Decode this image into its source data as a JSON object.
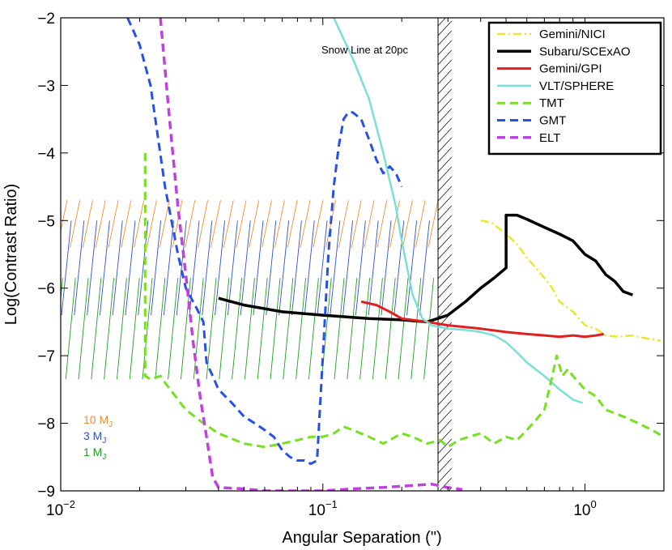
{
  "chart_data": {
    "type": "line",
    "xscale": "log",
    "xlabel": "Angular Separation (\")",
    "ylabel": "Log(Contrast Ratio)",
    "xlim": [
      0.01,
      2.0
    ],
    "ylim": [
      -9,
      -2
    ],
    "x_ticks": [
      {
        "value": 0.01,
        "base": "10",
        "exp": "−2"
      },
      {
        "value": 0.1,
        "base": "10",
        "exp": "−1"
      },
      {
        "value": 1.0,
        "base": "10",
        "exp": "0"
      }
    ],
    "y_ticks": [
      {
        "value": -2,
        "label": "−2"
      },
      {
        "value": -3,
        "label": "−3"
      },
      {
        "value": -4,
        "label": "−4"
      },
      {
        "value": -5,
        "label": "−5"
      },
      {
        "value": -6,
        "label": "−6"
      },
      {
        "value": -7,
        "label": "−7"
      },
      {
        "value": -8,
        "label": "−8"
      },
      {
        "value": -9,
        "label": "−9"
      }
    ],
    "snow_line": {
      "x": 0.275,
      "x_end": 0.31,
      "label": "Snow Line at 20pc"
    },
    "mass_regions": [
      {
        "label": "10 M",
        "sub": "J",
        "color": "#f09030",
        "x_range": [
          0.01,
          0.26
        ],
        "y_range": [
          -5.4,
          -4.7
        ]
      },
      {
        "label": "3 M",
        "sub": "J",
        "color": "#3050d0",
        "x_range": [
          0.01,
          0.26
        ],
        "y_range": [
          -6.4,
          -5.0
        ]
      },
      {
        "label": "1 M",
        "sub": "J",
        "color": "#20a020",
        "x_range": [
          0.01,
          0.26
        ],
        "y_range": [
          -7.35,
          -5.85
        ]
      }
    ],
    "series": [
      {
        "name": "Gemini/NICI",
        "color": "#e8e830",
        "dash": "dashdot",
        "width": 2.5,
        "x": [
          0.4,
          0.44,
          0.5,
          0.55,
          0.6,
          0.65,
          0.7,
          0.75,
          0.8,
          0.9,
          1.0,
          1.1,
          1.2,
          1.35,
          1.5,
          1.7,
          1.95
        ],
        "y": [
          -5.0,
          -5.03,
          -5.2,
          -5.35,
          -5.55,
          -5.7,
          -5.85,
          -6.0,
          -6.2,
          -6.35,
          -6.55,
          -6.6,
          -6.7,
          -6.72,
          -6.7,
          -6.74,
          -6.78
        ]
      },
      {
        "name": "Subaru/SCExAO",
        "color": "#000000",
        "dash": "solid",
        "width": 3.5,
        "x": [
          0.04,
          0.05,
          0.07,
          0.1,
          0.15,
          0.2,
          0.25,
          0.3,
          0.35,
          0.4,
          0.45,
          0.5,
          0.5,
          0.55,
          0.6,
          0.7,
          0.8,
          0.9,
          1.0,
          1.1,
          1.2,
          1.3,
          1.4,
          1.52
        ],
        "y": [
          -6.15,
          -6.25,
          -6.35,
          -6.4,
          -6.45,
          -6.47,
          -6.5,
          -6.4,
          -6.2,
          -6.0,
          -5.85,
          -5.7,
          -4.92,
          -4.92,
          -4.98,
          -5.1,
          -5.2,
          -5.3,
          -5.5,
          -5.6,
          -5.8,
          -5.9,
          -6.05,
          -6.1
        ]
      },
      {
        "name": "Gemini/GPI",
        "color": "#e02020",
        "dash": "solid",
        "width": 3,
        "x": [
          0.14,
          0.16,
          0.18,
          0.2,
          0.25,
          0.3,
          0.4,
          0.5,
          0.6,
          0.7,
          0.8,
          0.9,
          1.0,
          1.1,
          1.18
        ],
        "y": [
          -6.2,
          -6.25,
          -6.35,
          -6.45,
          -6.5,
          -6.55,
          -6.6,
          -6.65,
          -6.68,
          -6.7,
          -6.72,
          -6.7,
          -6.72,
          -6.7,
          -6.68
        ]
      },
      {
        "name": "VLT/SPHERE",
        "color": "#7ae0d6",
        "dash": "solid",
        "width": 2.5,
        "x": [
          0.11,
          0.13,
          0.15,
          0.17,
          0.19,
          0.2,
          0.22,
          0.24,
          0.26,
          0.3,
          0.35,
          0.4,
          0.45,
          0.5,
          0.55,
          0.6,
          0.7,
          0.8,
          0.9,
          0.98
        ],
        "y": [
          -2.0,
          -2.6,
          -3.2,
          -4.0,
          -4.8,
          -5.3,
          -6.1,
          -6.45,
          -6.55,
          -6.6,
          -6.62,
          -6.65,
          -6.7,
          -6.8,
          -6.95,
          -7.1,
          -7.3,
          -7.5,
          -7.65,
          -7.7
        ]
      },
      {
        "name": "TMT",
        "color": "#77e020",
        "dash": "dashed",
        "width": 3,
        "x": [
          0.021,
          0.021,
          0.021,
          0.022,
          0.024,
          0.025,
          0.03,
          0.035,
          0.04,
          0.05,
          0.06,
          0.07,
          0.08,
          0.09,
          0.1,
          0.11,
          0.12,
          0.13,
          0.15,
          0.17,
          0.2,
          0.22,
          0.25,
          0.28,
          0.3,
          0.33,
          0.36,
          0.4,
          0.45,
          0.5,
          0.55,
          0.6,
          0.65,
          0.7,
          0.75,
          0.78,
          0.82,
          0.86,
          0.9,
          1.0,
          1.1,
          1.2,
          1.4,
          1.6,
          1.8,
          2.0
        ],
        "y": [
          -4.0,
          -6.5,
          -7.3,
          -7.35,
          -7.3,
          -7.4,
          -7.8,
          -8.0,
          -8.15,
          -8.3,
          -8.35,
          -8.3,
          -8.25,
          -8.2,
          -8.2,
          -8.15,
          -8.05,
          -8.1,
          -8.2,
          -8.3,
          -8.15,
          -8.2,
          -8.3,
          -8.25,
          -8.35,
          -8.25,
          -8.2,
          -8.15,
          -8.3,
          -8.2,
          -8.25,
          -8.1,
          -7.95,
          -7.8,
          -7.3,
          -7.0,
          -7.3,
          -7.2,
          -7.3,
          -7.5,
          -7.6,
          -7.8,
          -7.9,
          -8.0,
          -8.1,
          -8.2
        ]
      },
      {
        "name": "GMT",
        "color": "#2850e8",
        "dash": "dashed",
        "width": 3,
        "x": [
          0.018,
          0.02,
          0.022,
          0.025,
          0.028,
          0.03,
          0.033,
          0.035,
          0.036,
          0.038,
          0.04,
          0.045,
          0.05,
          0.055,
          0.06,
          0.065,
          0.07,
          0.075,
          0.08,
          0.085,
          0.09,
          0.095,
          0.1,
          0.105,
          0.11,
          0.115,
          0.12,
          0.125,
          0.13,
          0.14,
          0.15,
          0.16,
          0.17,
          0.18,
          0.19,
          0.2
        ],
        "y": [
          -2.0,
          -2.4,
          -3.0,
          -4.5,
          -5.5,
          -6.0,
          -6.3,
          -6.5,
          -7.1,
          -7.3,
          -7.5,
          -7.7,
          -7.9,
          -8.0,
          -8.1,
          -8.2,
          -8.4,
          -8.5,
          -8.55,
          -8.55,
          -8.6,
          -8.55,
          -7.0,
          -5.5,
          -4.5,
          -3.9,
          -3.5,
          -3.4,
          -3.4,
          -3.5,
          -3.8,
          -4.1,
          -4.3,
          -4.2,
          -4.3,
          -4.5
        ]
      },
      {
        "name": "ELT",
        "color": "#c040e0",
        "dash": "dashed",
        "width": 3.5,
        "x": [
          0.024,
          0.026,
          0.028,
          0.03,
          0.032,
          0.034,
          0.036,
          0.038,
          0.04,
          0.05,
          0.06,
          0.08,
          0.1,
          0.13,
          0.17,
          0.22,
          0.26,
          0.3,
          0.34
        ],
        "y": [
          -2.0,
          -3.5,
          -4.8,
          -5.8,
          -6.8,
          -7.6,
          -8.2,
          -8.8,
          -8.95,
          -8.97,
          -9.0,
          -9.0,
          -9.0,
          -8.97,
          -8.95,
          -8.92,
          -8.9,
          -8.95,
          -8.98
        ]
      }
    ]
  }
}
